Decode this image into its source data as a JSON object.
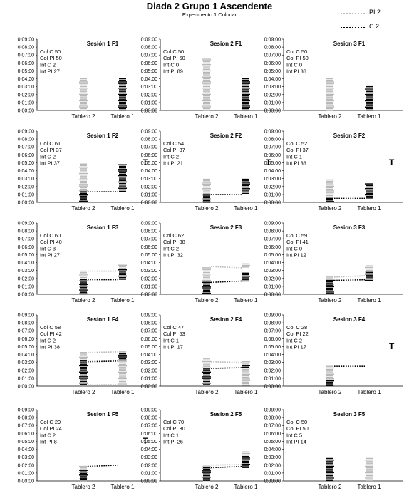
{
  "title": "Diada 2 Grupo 1 Ascendente",
  "subtitle": "Experimento 1 Colocar",
  "legend": [
    {
      "label": "PI 2",
      "style": "dotted",
      "color": "#b8b8b8"
    },
    {
      "label": "C 2",
      "style": "dotted",
      "color": "#000000"
    }
  ],
  "colors": {
    "pi2": "#b8b8b8",
    "c2": "#000000"
  },
  "chart_data": [
    {
      "type": "bar",
      "title": "Sesión 1 F1",
      "categories": [
        "Tablero 2",
        "Tablero 1"
      ],
      "yticks": [
        "0:00:00",
        "0:01:00",
        "0:02:00",
        "0:03:00",
        "0:04:00",
        "0:05:00",
        "0:06:00",
        "0:07:00",
        "0:08:00",
        "0:09:00"
      ],
      "ylim": [
        0,
        540
      ],
      "stats": [
        "Col C 50",
        "Col PI 50",
        "Int C 2",
        "Int PI 27"
      ],
      "t_marker": "",
      "bars": [
        {
          "category": "Tablero 2",
          "series": "PI 2",
          "min": 0,
          "max": 240
        },
        {
          "category": "Tablero 1",
          "series": "C 2",
          "min": 0,
          "max": 240
        }
      ],
      "lines": []
    },
    {
      "type": "bar",
      "title": "Sesion 2 F1",
      "categories": [
        "Tablero 2",
        "Tablero 1"
      ],
      "yticks": [
        "0:00:00",
        "0:01:00",
        "0:02:00",
        "0:03:00",
        "0:04:00",
        "0:05:00",
        "0:06:00",
        "0:07:00",
        "0:08:00",
        "0:09:00"
      ],
      "ylim": [
        0,
        540
      ],
      "stats": [
        "Col C 50",
        "Col PI 50",
        "Int C 0",
        "Int PI 89"
      ],
      "t_marker": "",
      "bars": [
        {
          "category": "Tablero 2",
          "series": "PI 2",
          "min": 0,
          "max": 395
        },
        {
          "category": "Tablero 1",
          "series": "C 2",
          "min": 0,
          "max": 240
        }
      ],
      "lines": []
    },
    {
      "type": "bar",
      "title": "Sesion 3 F1",
      "categories": [
        "Tablero 2",
        "Tablero 1"
      ],
      "yticks": [
        "0:00:00",
        "0:01:00",
        "0:02:00",
        "0:03:00",
        "0:04:00",
        "0:05:00",
        "0:06:00",
        "0:07:00",
        "0:08:00",
        "0:09:00"
      ],
      "ylim": [
        0,
        540
      ],
      "stats": [
        "Col C 50",
        "Col PI 50",
        "Int C 0",
        "Int PI 38"
      ],
      "t_marker": "",
      "bars": [
        {
          "category": "Tablero 2",
          "series": "PI 2",
          "min": 0,
          "max": 240
        },
        {
          "category": "Tablero 1",
          "series": "C 2",
          "min": 0,
          "max": 180
        }
      ],
      "lines": []
    },
    {
      "type": "bar",
      "title": "Sesion 1 F2",
      "categories": [
        "Tablero 2",
        "Tablero 1"
      ],
      "yticks": [
        "0:00:00",
        "0:01:00",
        "0:02:00",
        "0:03:00",
        "0:04:00",
        "0:05:00",
        "0:06:00",
        "0:07:00",
        "0:08:00",
        "0:09:00"
      ],
      "ylim": [
        0,
        540
      ],
      "stats": [
        "Col C 61",
        "Col PI 37",
        "Int C 2",
        "Int PI 37"
      ],
      "t_marker": "T",
      "bars": [
        {
          "category": "Tablero 2",
          "series": "PI 2",
          "min": 0,
          "max": 290
        },
        {
          "category": "Tablero 2",
          "series": "C 2",
          "min": 0,
          "max": 80
        },
        {
          "category": "Tablero 1",
          "series": "C 2",
          "min": 80,
          "max": 285
        }
      ],
      "lines": [
        {
          "series": "C 2",
          "y1": 80,
          "y2": 80
        }
      ]
    },
    {
      "type": "bar",
      "title": "Sesion 2 F2",
      "categories": [
        "Tablero 2",
        "Tablero 1"
      ],
      "yticks": [
        "0:00:00",
        "0:01:00",
        "0:02:00",
        "0:03:00",
        "0:04:00",
        "0:05:00",
        "0:06:00",
        "0:07:00",
        "0:08:00",
        "0:09:00"
      ],
      "ylim": [
        0,
        540
      ],
      "stats": [
        "Col C 54",
        "Col PI 37",
        "Int C 2",
        "Int PI 21"
      ],
      "t_marker": "T",
      "bars": [
        {
          "category": "Tablero 2",
          "series": "PI 2",
          "min": 0,
          "max": 175
        },
        {
          "category": "Tablero 2",
          "series": "C 2",
          "min": 0,
          "max": 60
        },
        {
          "category": "Tablero 1",
          "series": "C 2",
          "min": 60,
          "max": 175
        }
      ],
      "lines": [
        {
          "series": "C 2",
          "y1": 60,
          "y2": 60
        }
      ]
    },
    {
      "type": "bar",
      "title": "Sesion 3 F2",
      "categories": [
        "Tablero 2",
        "Tablero 1"
      ],
      "yticks": [
        "0:00:00",
        "0:01:00",
        "0:02:00",
        "0:03:00",
        "0:04:00",
        "0:05:00",
        "0:06:00",
        "0:07:00",
        "0:08:00",
        "0:09:00"
      ],
      "ylim": [
        0,
        540
      ],
      "stats": [
        "Col C 52",
        "Col PI 37",
        "Int C 1",
        "Int PI 33"
      ],
      "t_marker": "T",
      "bars": [
        {
          "category": "Tablero 2",
          "series": "PI 2",
          "min": 0,
          "max": 170
        },
        {
          "category": "Tablero 2",
          "series": "C 2",
          "min": 0,
          "max": 30
        },
        {
          "category": "Tablero 1",
          "series": "C 2",
          "min": 30,
          "max": 140
        }
      ],
      "lines": [
        {
          "series": "C 2",
          "y1": 30,
          "y2": 30
        }
      ]
    },
    {
      "type": "bar",
      "title": "Sesion 1 F3",
      "categories": [
        "Tablero 2",
        "Tablero 1"
      ],
      "yticks": [
        "0:00:00",
        "0:01:00",
        "0:02:00",
        "0:03:00",
        "0:04:00",
        "0:05:00",
        "0:06:00",
        "0:07:00",
        "0:08:00",
        "0:09:00"
      ],
      "ylim": [
        0,
        540
      ],
      "stats": [
        "Col C 60",
        "Col PI 40",
        "Int C 3",
        "Int PI 27"
      ],
      "t_marker": "",
      "bars": [
        {
          "category": "Tablero 2",
          "series": "PI 2",
          "min": 0,
          "max": 175
        },
        {
          "category": "Tablero 2",
          "series": "C 2",
          "min": 0,
          "max": 110
        },
        {
          "category": "Tablero 1",
          "series": "PI 2",
          "min": 175,
          "max": 220
        },
        {
          "category": "Tablero 1",
          "series": "C 2",
          "min": 110,
          "max": 185
        }
      ],
      "lines": [
        {
          "series": "PI 2",
          "y1": 175,
          "y2": 175
        },
        {
          "series": "C 2",
          "y1": 110,
          "y2": 110
        }
      ]
    },
    {
      "type": "bar",
      "title": "Sesion 2 F3",
      "categories": [
        "Tablero 2",
        "Tablero 1"
      ],
      "yticks": [
        "0:00:00",
        "0:01:00",
        "0:02:00",
        "0:03:00",
        "0:04:00",
        "0:05:00",
        "0:06:00",
        "0:07:00",
        "0:08:00",
        "0:09:00"
      ],
      "ylim": [
        0,
        540
      ],
      "stats": [
        "Col C 62",
        "Col PI 38",
        "Int C 2",
        "Int PI 32"
      ],
      "t_marker": "",
      "bars": [
        {
          "category": "Tablero 2",
          "series": "PI 2",
          "min": 0,
          "max": 200
        },
        {
          "category": "Tablero 2",
          "series": "C 2",
          "min": 0,
          "max": 90
        },
        {
          "category": "Tablero 1",
          "series": "PI 2",
          "min": 200,
          "max": 230
        },
        {
          "category": "Tablero 1",
          "series": "C 2",
          "min": 90,
          "max": 160
        }
      ],
      "lines": [
        {
          "series": "PI 2",
          "y1": 210,
          "y2": 200
        },
        {
          "series": "C 2",
          "y1": 90,
          "y2": 100
        }
      ]
    },
    {
      "type": "bar",
      "title": "Sesion 3 F3",
      "categories": [
        "Tablero 2",
        "Tablero 1"
      ],
      "yticks": [
        "0:00:00",
        "0:01:00",
        "0:02:00",
        "0:03:00",
        "0:04:00",
        "0:05:00",
        "0:06:00",
        "0:07:00",
        "0:08:00",
        "0:09:00"
      ],
      "ylim": [
        0,
        540
      ],
      "stats": [
        "Col C 59",
        "Col PI 41",
        "Int C 0",
        "Int PI 12"
      ],
      "t_marker": "",
      "bars": [
        {
          "category": "Tablero 2",
          "series": "PI 2",
          "min": 0,
          "max": 130
        },
        {
          "category": "Tablero 2",
          "series": "C 2",
          "min": 0,
          "max": 105
        },
        {
          "category": "Tablero 1",
          "series": "PI 2",
          "min": 130,
          "max": 215
        },
        {
          "category": "Tablero 1",
          "series": "C 2",
          "min": 105,
          "max": 165
        }
      ],
      "lines": [
        {
          "series": "PI 2",
          "y1": 130,
          "y2": 140
        },
        {
          "series": "C 2",
          "y1": 105,
          "y2": 110
        }
      ]
    },
    {
      "type": "bar",
      "title": "Sesion 1 F4",
      "categories": [
        "Tablero 2",
        "Tablero 1"
      ],
      "yticks": [
        "0:00:00",
        "0:01:00",
        "0:02:00",
        "0:03:00",
        "0:04:00",
        "0:05:00",
        "0:06:00",
        "0:07:00",
        "0:08:00",
        "0:09:00"
      ],
      "ylim": [
        0,
        540
      ],
      "stats": [
        "Col C 58",
        "Col PI 42",
        "Int C 2",
        "Int PI 38"
      ],
      "t_marker": "",
      "bars": [
        {
          "category": "Tablero 2",
          "series": "PI 2",
          "min": 190,
          "max": 255
        },
        {
          "category": "Tablero 2",
          "series": "C 2",
          "min": 0,
          "max": 190
        },
        {
          "category": "Tablero 1",
          "series": "PI 2",
          "min": 0,
          "max": 260
        },
        {
          "category": "Tablero 1",
          "series": "C 2",
          "min": 190,
          "max": 245
        }
      ],
      "lines": [
        {
          "series": "PI 2",
          "y1": 255,
          "y2": 260
        },
        {
          "series": "PI 2",
          "y1": 10,
          "y2": 10
        },
        {
          "series": "C 2",
          "y1": 185,
          "y2": 190
        }
      ]
    },
    {
      "type": "bar",
      "title": "Sesion 2 F4",
      "categories": [
        "Tablero 2",
        "Tablero 1"
      ],
      "yticks": [
        "0:00:00",
        "0:01:00",
        "0:02:00",
        "0:03:00",
        "0:04:00",
        "0:05:00",
        "0:06:00",
        "0:07:00",
        "0:08:00",
        "0:09:00"
      ],
      "ylim": [
        0,
        540
      ],
      "stats": [
        "Col C 47",
        "Col PI 53",
        "Int C 1",
        "Int PI 17"
      ],
      "t_marker": "",
      "bars": [
        {
          "category": "Tablero 2",
          "series": "PI 2",
          "min": 130,
          "max": 210
        },
        {
          "category": "Tablero 2",
          "series": "C 2",
          "min": 0,
          "max": 130
        },
        {
          "category": "Tablero 1",
          "series": "PI 2",
          "min": 0,
          "max": 185
        },
        {
          "category": "Tablero 1",
          "series": "C 2",
          "min": 140,
          "max": 155
        }
      ],
      "lines": [
        {
          "series": "PI 2",
          "y1": 185,
          "y2": 180
        },
        {
          "series": "C 2",
          "y1": 135,
          "y2": 140
        }
      ]
    },
    {
      "type": "bar",
      "title": "Sesion 3 F4",
      "categories": [
        "Tablero 2",
        "Tablero 1"
      ],
      "yticks": [
        "0:00:00",
        "0:01:00",
        "0:02:00",
        "0:03:00",
        "0:04:00",
        "0:05:00",
        "0:06:00",
        "0:07:00",
        "0:08:00",
        "0:09:00"
      ],
      "ylim": [
        0,
        540
      ],
      "stats": [
        "Col C 28",
        "Col PI 22",
        "Int C 2",
        "Int PI 17"
      ],
      "t_marker": "T",
      "bars": [
        {
          "category": "Tablero 2",
          "series": "PI 2",
          "min": 0,
          "max": 150
        },
        {
          "category": "Tablero 2",
          "series": "C 2",
          "min": 0,
          "max": 40
        }
      ],
      "lines": [
        {
          "series": "C 2",
          "y1": 150,
          "y2": 150
        }
      ]
    },
    {
      "type": "bar",
      "title": "Sesion 1 F5",
      "categories": [
        "Tablero 2",
        "Tablero 1"
      ],
      "yticks": [
        "0:00:00",
        "0:01:00",
        "0:02:00",
        "0:03:00",
        "0:04:00",
        "0:05:00",
        "0:06:00",
        "0:07:00",
        "0:08:00",
        "0:09:00"
      ],
      "ylim": [
        0,
        540
      ],
      "stats": [
        "Col C 29",
        "Col PI 24",
        "Int C 2",
        "Int PI 8"
      ],
      "t_marker": "T",
      "bars": [
        {
          "category": "Tablero 2",
          "series": "PI 2",
          "min": 0,
          "max": 110
        },
        {
          "category": "Tablero 2",
          "series": "C 2",
          "min": 0,
          "max": 80
        }
      ],
      "lines": [
        {
          "series": "C 2",
          "y1": 110,
          "y2": 120
        }
      ]
    },
    {
      "type": "bar",
      "title": "Sesion 2 F5",
      "categories": [
        "Tablero 2",
        "Tablero 1"
      ],
      "yticks": [
        "0:00:00",
        "0:01:00",
        "0:02:00",
        "0:03:00",
        "0:04:00",
        "0:05:00",
        "0:06:00",
        "0:07:00",
        "0:08:00",
        "0:09:00"
      ],
      "ylim": [
        0,
        540
      ],
      "stats": [
        "Col C 70",
        "Col PI 30",
        "Int C 1",
        "Int PI 26"
      ],
      "t_marker": "",
      "bars": [
        {
          "category": "Tablero 2",
          "series": "PI 2",
          "min": 0,
          "max": 120
        },
        {
          "category": "Tablero 2",
          "series": "C 2",
          "min": 0,
          "max": 100
        },
        {
          "category": "Tablero 1",
          "series": "PI 2",
          "min": 120,
          "max": 220
        },
        {
          "category": "Tablero 1",
          "series": "C 2",
          "min": 100,
          "max": 185
        }
      ],
      "lines": [
        {
          "series": "PI 2",
          "y1": 120,
          "y2": 125
        },
        {
          "series": "C 2",
          "y1": 100,
          "y2": 110
        }
      ]
    },
    {
      "type": "bar",
      "title": "Sesion 3 F5",
      "categories": [
        "Tablero 2",
        "Tablero 1"
      ],
      "yticks": [
        "0:00:00",
        "0:01:00",
        "0:02:00",
        "0:03:00",
        "0:04:00",
        "0:05:00",
        "0:06:00",
        "0:07:00",
        "0:08:00",
        "0:09:00"
      ],
      "ylim": [
        0,
        540
      ],
      "stats": [
        "Col C 50",
        "Col PI 50",
        "Int C 5",
        "Int PI 14"
      ],
      "t_marker": "",
      "bars": [
        {
          "category": "Tablero 2",
          "series": "C 2",
          "min": 0,
          "max": 170
        },
        {
          "category": "Tablero 1",
          "series": "PI 2",
          "min": 0,
          "max": 170
        }
      ],
      "lines": []
    }
  ]
}
